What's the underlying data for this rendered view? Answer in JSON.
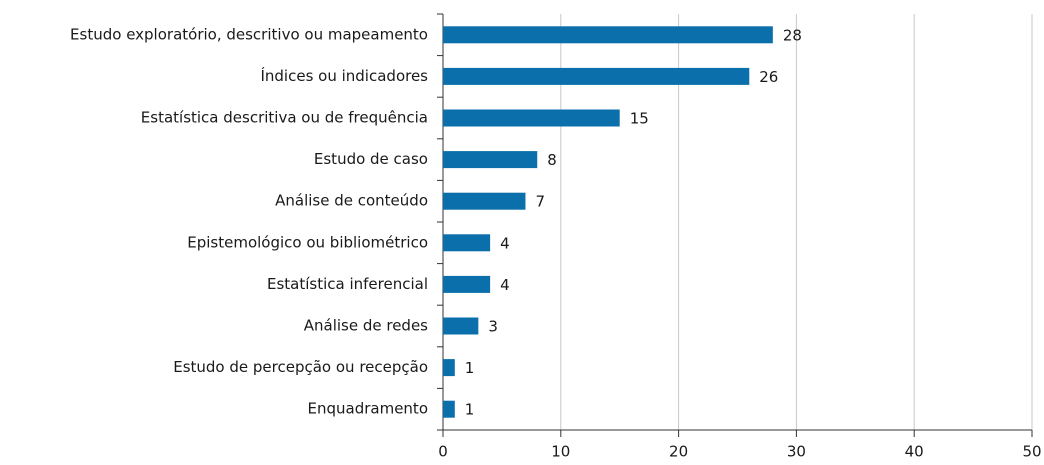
{
  "chart_data": {
    "type": "bar",
    "orientation": "horizontal",
    "categories": [
      "Estudo exploratório, descritivo ou mapeamento",
      "Índices ou indicadores",
      "Estatística descritiva ou de frequência",
      "Estudo de caso",
      "Análise de conteúdo",
      "Epistemológico ou bibliométrico",
      "Estatística inferencial",
      "Análise de redes",
      "Estudo de percepção ou recepção",
      "Enquadramento"
    ],
    "values": [
      28,
      26,
      15,
      8,
      7,
      4,
      4,
      3,
      1,
      1
    ],
    "color": "#0a6fab",
    "xlim": [
      0,
      50
    ],
    "xticks": [
      0,
      10,
      20,
      30,
      40,
      50
    ],
    "grid": true
  }
}
